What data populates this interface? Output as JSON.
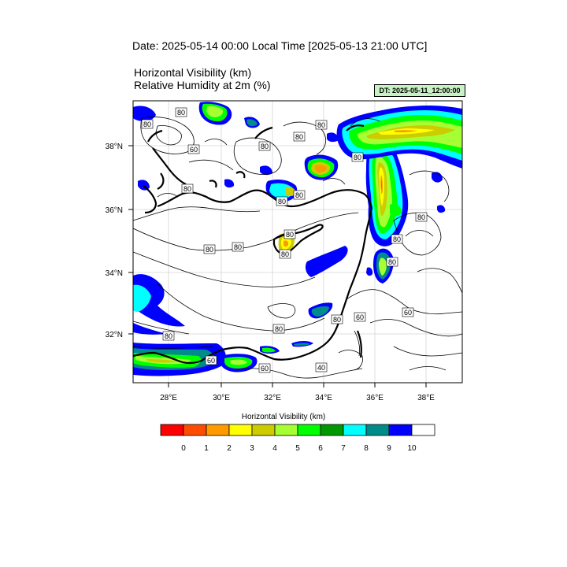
{
  "header": {
    "date_line": "Date: 2025-05-14  00:00 Local Time [2025-05-13  21:00 UTC]",
    "title_line_1": "Horizontal Visibility   (km)",
    "title_line_2": "Relative Humidity at 2m   (%)",
    "dt_badge": "DT: 2025-05-11_12:00:00"
  },
  "map": {
    "lon_ticks": [
      "28°E",
      "30°E",
      "32°E",
      "34°E",
      "36°E",
      "38°E"
    ],
    "lat_ticks": [
      "38°N",
      "36°N",
      "34°N",
      "32°N"
    ],
    "contour_labels": [
      "80",
      "80",
      "60",
      "80",
      "80",
      "80",
      "80",
      "80",
      "80",
      "80",
      "80",
      "80",
      "80",
      "80",
      "80",
      "80",
      "80",
      "80",
      "60",
      "80",
      "60",
      "60",
      "80",
      "60",
      "40"
    ]
  },
  "legend": {
    "title": "Horizontal Visibility  (km)",
    "colors": [
      "#ff0000",
      "#ff4c00",
      "#ff9900",
      "#ffff00",
      "#cccc00",
      "#a6ff33",
      "#00ff00",
      "#009900",
      "#00ffff",
      "#008b8b",
      "#0000ff",
      "#ffffff"
    ],
    "labels": [
      "0",
      "1",
      "2",
      "3",
      "4",
      "5",
      "6",
      "7",
      "8",
      "9",
      "10"
    ]
  }
}
